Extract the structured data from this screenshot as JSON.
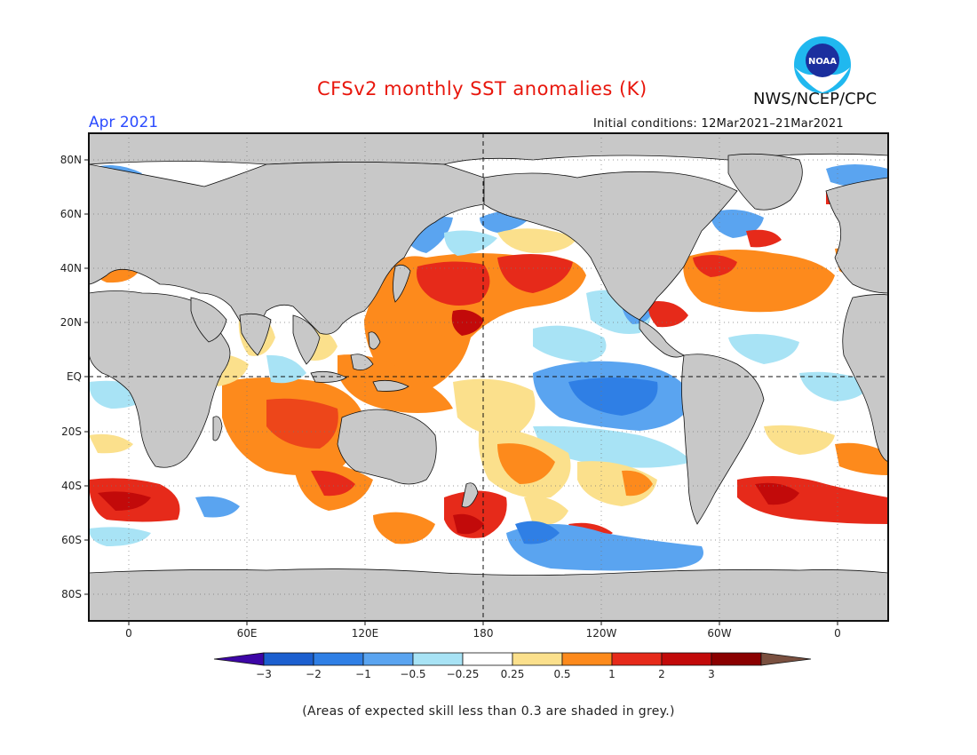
{
  "title": "CFSv2 monthly SST anomalies (K)",
  "valid_month": "Apr 2021",
  "initial_conditions": "Initial conditions: 12Mar2021–21Mar2021",
  "organization": "NWS/NCEP/CPC",
  "logo_text": "NOAA",
  "lat_labels": [
    "80N",
    "60N",
    "40N",
    "20N",
    "EQ",
    "20S",
    "40S",
    "60S",
    "80S"
  ],
  "lon_labels": [
    "0",
    "60E",
    "120E",
    "180",
    "120W",
    "60W",
    "0"
  ],
  "colorbar": {
    "labels": [
      "−3",
      "−2",
      "−1",
      "−0.5",
      "−0.25",
      "0.25",
      "0.5",
      "1",
      "2",
      "3"
    ],
    "colors": [
      "#3d06a6",
      "#1c5fcf",
      "#2f7fe5",
      "#5aa4f0",
      "#a8e3f5",
      "#ffffff",
      "#fbe08c",
      "#fd8a1c",
      "#e62a1a",
      "#c20a0a",
      "#8a0000",
      "#7a5040"
    ]
  },
  "footnote": "(Areas of expected skill less than 0.3 are shaded in grey.)",
  "colors": {
    "land": "#c8c8c8",
    "title": "#e8160c",
    "month": "#2b4bff"
  }
}
